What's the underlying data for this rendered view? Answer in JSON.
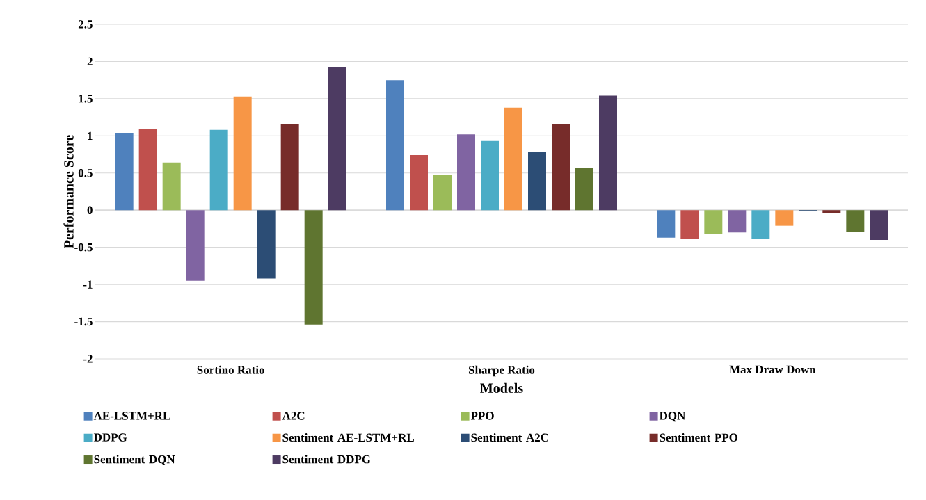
{
  "chart_data": {
    "type": "bar",
    "xlabel": "Models",
    "ylabel": "Performance Score",
    "categories": [
      "Sortino Ratio",
      "Sharpe Ratio",
      "Max Draw Down"
    ],
    "series": [
      {
        "name": "AE-LSTM+RL",
        "color": "#4f81bd",
        "values": [
          1.04,
          1.75,
          -0.37
        ]
      },
      {
        "name": "A2C",
        "color": "#c0504d",
        "values": [
          1.09,
          0.74,
          -0.39
        ]
      },
      {
        "name": "PPO",
        "color": "#9bbb59",
        "values": [
          0.64,
          0.47,
          -0.32
        ]
      },
      {
        "name": "DQN",
        "color": "#8064a2",
        "values": [
          -0.95,
          1.02,
          -0.3
        ]
      },
      {
        "name": "DDPG",
        "color": "#4bacc6",
        "values": [
          1.08,
          0.93,
          -0.39
        ]
      },
      {
        "name": "Sentiment AE-LSTM+RL",
        "color": "#f79646",
        "values": [
          1.53,
          1.38,
          -0.21
        ]
      },
      {
        "name": "Sentiment A2C",
        "color": "#2c4d75",
        "values": [
          -0.92,
          0.78,
          -0.01
        ]
      },
      {
        "name": "Sentiment PPO",
        "color": "#772c2a",
        "values": [
          1.16,
          1.16,
          -0.04
        ]
      },
      {
        "name": "Sentiment DQN",
        "color": "#5f7530",
        "values": [
          -1.54,
          0.57,
          -0.29
        ]
      },
      {
        "name": "Sentiment DDPG",
        "color": "#4d3b62",
        "values": [
          1.93,
          1.54,
          -0.4
        ]
      }
    ],
    "ylim": [
      -2,
      2.5
    ],
    "yticks": [
      -2,
      -1.5,
      -1,
      -0.5,
      0,
      0.5,
      1,
      1.5,
      2,
      2.5
    ],
    "grid": "y",
    "legend": "bottom"
  }
}
